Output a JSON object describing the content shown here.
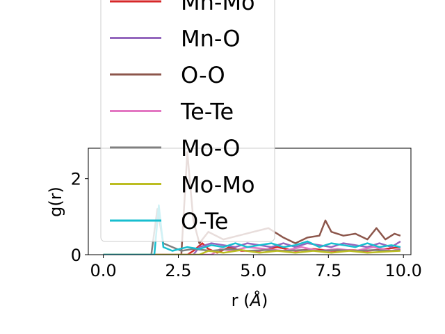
{
  "chart_data": {
    "type": "line",
    "xlabel": "r (Å)",
    "xlabel_main": "r (",
    "xlabel_unit": "Å",
    "xlabel_close": ")",
    "ylabel": "g(r)",
    "xlim": [
      -0.5,
      10.25
    ],
    "ylim": [
      0,
      2.8
    ],
    "xticks": [
      0.0,
      2.5,
      5.0,
      7.5,
      10.0
    ],
    "xtick_labels": [
      "0.0",
      "2.5",
      "5.0",
      "7.5",
      "10.0"
    ],
    "yticks": [
      0,
      2
    ],
    "ytick_labels": [
      "0",
      "2"
    ],
    "grid": false,
    "legend_position": "upper-center",
    "series": [
      {
        "name": "Mn-Mo",
        "color": "#d62728",
        "points": [
          [
            0.0,
            0
          ],
          [
            2.8,
            0
          ],
          [
            3.0,
            0.1
          ],
          [
            3.3,
            0.3
          ],
          [
            3.5,
            0.15
          ],
          [
            3.8,
            0.05
          ],
          [
            4.2,
            0.2
          ],
          [
            4.6,
            0.1
          ],
          [
            5.2,
            0.1
          ],
          [
            5.8,
            0.2
          ],
          [
            6.4,
            0.1
          ],
          [
            7.0,
            0.15
          ],
          [
            7.6,
            0.1
          ],
          [
            8.2,
            0.12
          ],
          [
            8.8,
            0.1
          ],
          [
            9.4,
            0.15
          ],
          [
            9.9,
            0.2
          ]
        ]
      },
      {
        "name": "Mn-O",
        "color": "#9467bd",
        "points": [
          [
            0.0,
            0
          ],
          [
            3.0,
            0
          ],
          [
            3.2,
            0.2
          ],
          [
            3.6,
            0.3
          ],
          [
            4.0,
            0.25
          ],
          [
            4.4,
            0.2
          ],
          [
            4.8,
            0.3
          ],
          [
            5.2,
            0.25
          ],
          [
            5.6,
            0.2
          ],
          [
            6.0,
            0.3
          ],
          [
            6.4,
            0.2
          ],
          [
            6.8,
            0.3
          ],
          [
            7.2,
            0.25
          ],
          [
            7.6,
            0.2
          ],
          [
            8.0,
            0.3
          ],
          [
            8.4,
            0.25
          ],
          [
            8.8,
            0.2
          ],
          [
            9.2,
            0.3
          ],
          [
            9.6,
            0.2
          ],
          [
            9.9,
            0.35
          ]
        ]
      },
      {
        "name": "O-O",
        "color": "#8c564b",
        "points": [
          [
            0.0,
            0
          ],
          [
            2.6,
            0
          ],
          [
            2.8,
            2.7
          ],
          [
            3.0,
            0.9
          ],
          [
            3.2,
            0.3
          ],
          [
            3.5,
            0.6
          ],
          [
            4.0,
            0.4
          ],
          [
            4.5,
            0.5
          ],
          [
            5.0,
            0.6
          ],
          [
            5.5,
            0.7
          ],
          [
            6.0,
            0.45
          ],
          [
            6.4,
            0.3
          ],
          [
            6.8,
            0.45
          ],
          [
            7.2,
            0.5
          ],
          [
            7.4,
            0.9
          ],
          [
            7.6,
            0.6
          ],
          [
            8.0,
            0.5
          ],
          [
            8.4,
            0.55
          ],
          [
            8.8,
            0.4
          ],
          [
            9.1,
            0.7
          ],
          [
            9.4,
            0.4
          ],
          [
            9.7,
            0.55
          ],
          [
            9.9,
            0.5
          ]
        ]
      },
      {
        "name": "Te-Te",
        "color": "#e377c2",
        "points": [
          [
            0.0,
            0
          ],
          [
            3.6,
            0
          ],
          [
            3.9,
            0.15
          ],
          [
            4.3,
            0.1
          ],
          [
            4.8,
            0.2
          ],
          [
            5.4,
            0.15
          ],
          [
            6.0,
            0.1
          ],
          [
            6.6,
            0.2
          ],
          [
            7.2,
            0.1
          ],
          [
            7.8,
            0.15
          ],
          [
            8.4,
            0.1
          ],
          [
            9.0,
            0.2
          ],
          [
            9.6,
            0.1
          ],
          [
            9.9,
            0.15
          ]
        ]
      },
      {
        "name": "Mo-O",
        "color": "#7f7f7f",
        "points": [
          [
            0.0,
            0
          ],
          [
            1.6,
            0
          ],
          [
            1.8,
            1.2
          ],
          [
            2.0,
            0.3
          ],
          [
            2.3,
            0.2
          ],
          [
            2.6,
            0.1
          ],
          [
            3.0,
            0.15
          ],
          [
            3.6,
            0.1
          ],
          [
            4.2,
            0.15
          ],
          [
            4.8,
            0.1
          ],
          [
            5.4,
            0.12
          ],
          [
            6.0,
            0.1
          ],
          [
            6.6,
            0.12
          ],
          [
            7.2,
            0.1
          ],
          [
            7.8,
            0.12
          ],
          [
            8.4,
            0.1
          ],
          [
            9.0,
            0.12
          ],
          [
            9.6,
            0.1
          ],
          [
            9.9,
            0.12
          ]
        ]
      },
      {
        "name": "Mo-Mo",
        "color": "#bcbd22",
        "points": [
          [
            0.0,
            0
          ],
          [
            3.2,
            0
          ],
          [
            3.5,
            0.1
          ],
          [
            4.0,
            0.05
          ],
          [
            4.6,
            0.12
          ],
          [
            5.2,
            0.05
          ],
          [
            5.8,
            0.1
          ],
          [
            6.4,
            0.05
          ],
          [
            7.0,
            0.1
          ],
          [
            7.6,
            0.05
          ],
          [
            8.2,
            0.1
          ],
          [
            8.8,
            0.05
          ],
          [
            9.4,
            0.08
          ],
          [
            9.9,
            0.1
          ]
        ]
      },
      {
        "name": "O-Te",
        "color": "#17becf",
        "points": [
          [
            0.0,
            0
          ],
          [
            1.7,
            0
          ],
          [
            1.85,
            1.3
          ],
          [
            2.0,
            0.2
          ],
          [
            2.3,
            0.1
          ],
          [
            2.8,
            0.2
          ],
          [
            3.2,
            0.15
          ],
          [
            3.6,
            0.25
          ],
          [
            4.0,
            0.2
          ],
          [
            4.4,
            0.3
          ],
          [
            4.8,
            0.2
          ],
          [
            5.2,
            0.25
          ],
          [
            5.6,
            0.3
          ],
          [
            6.0,
            0.2
          ],
          [
            6.4,
            0.25
          ],
          [
            6.8,
            0.35
          ],
          [
            7.2,
            0.2
          ],
          [
            7.6,
            0.3
          ],
          [
            8.0,
            0.25
          ],
          [
            8.4,
            0.2
          ],
          [
            8.8,
            0.3
          ],
          [
            9.2,
            0.2
          ],
          [
            9.6,
            0.25
          ],
          [
            9.9,
            0.2
          ]
        ]
      }
    ]
  }
}
